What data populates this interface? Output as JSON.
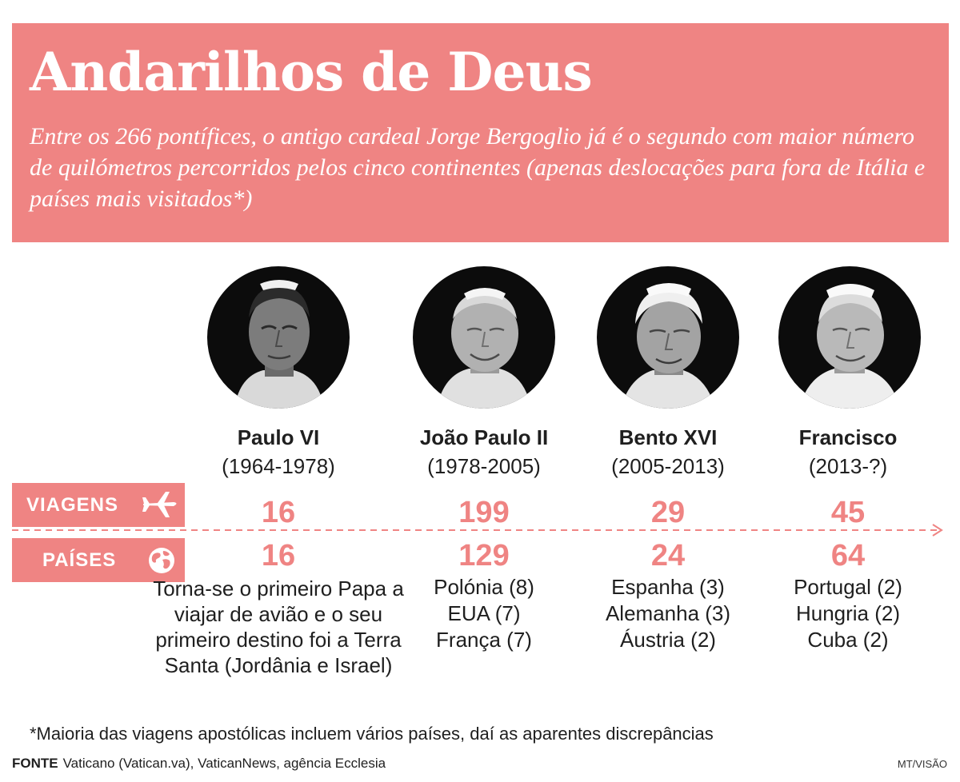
{
  "header": {
    "title": "Andarilhos de Deus",
    "subtitle": "Entre os 266 pontífices, o antigo cardeal Jorge Bergoglio já é o segundo com maior número de quilómetros percorridos pelos cinco continentes (apenas deslocações para fora de Itália e países mais visitados*)"
  },
  "labels": {
    "viagens": "VIAGENS",
    "viagens_icon": "airplane-icon",
    "paises": "PAÍSES",
    "paises_icon": "globe-icon"
  },
  "popes": [
    {
      "name": "Paulo VI",
      "years": "(1964-1978)",
      "viagens": "16",
      "paises": "16",
      "note": "Torna-se o primeiro Papa a viajar de avião e o seu primeiro destino foi a Terra Santa (Jordânia e Israel)"
    },
    {
      "name": "João Paulo II",
      "years": "(1978-2005)",
      "viagens": "199",
      "paises": "129",
      "countries": [
        "Polónia (8)",
        "EUA (7)",
        "França (7)"
      ]
    },
    {
      "name": "Bento XVI",
      "years": "(2005-2013)",
      "viagens": "29",
      "paises": "24",
      "countries": [
        "Espanha (3)",
        "Alemanha (3)",
        "Áustria (2)"
      ]
    },
    {
      "name": "Francisco",
      "years": "(2013-?)",
      "viagens": "45",
      "paises": "64",
      "countries": [
        "Portugal (2)",
        "Hungria (2)",
        "Cuba (2)"
      ]
    }
  ],
  "footnote": "*Maioria das viagens apostólicas incluem vários países, daí as aparentes discrepâncias",
  "source": {
    "label": "FONTE",
    "text": "Vaticano (Vatican.va), VaticanNews, agência Ecclesia"
  },
  "credit": "MT/VISÃO",
  "colors": {
    "accent": "#ef8483",
    "text": "#1f1f1f",
    "portrait_bg": "#0c0c0c"
  }
}
